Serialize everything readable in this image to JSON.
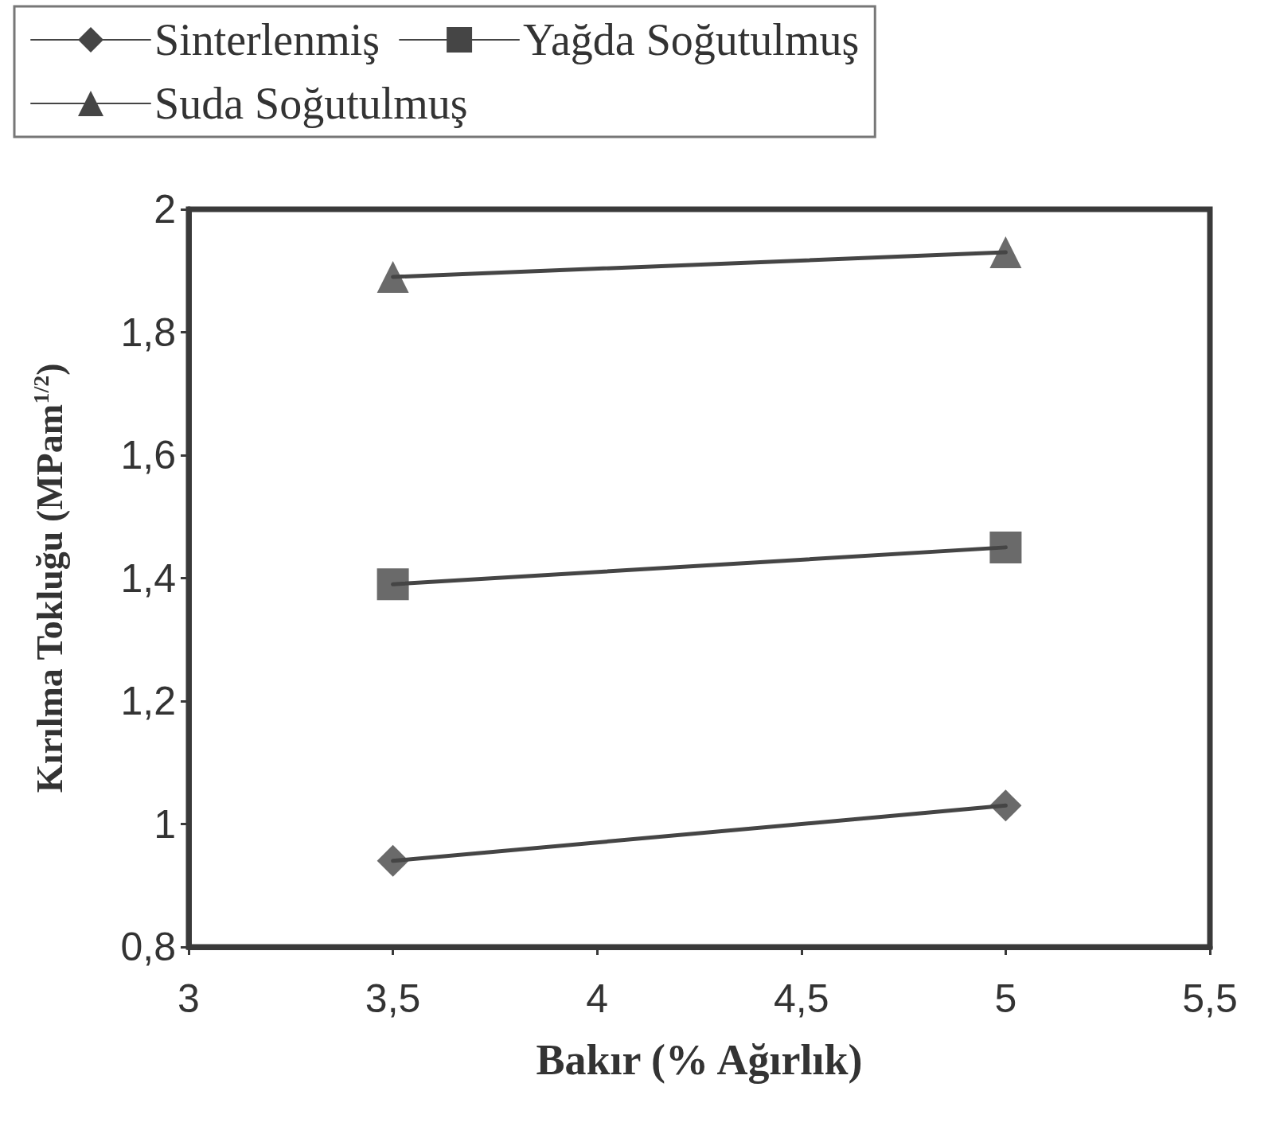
{
  "chart_data": {
    "type": "line",
    "xlabel": "Bakır (% Ağırlık)",
    "ylabel": "Kırılma Tokluğu (MPam$^{1/2}$)",
    "x": [
      3.5,
      5
    ],
    "series": [
      {
        "name": "Sinterlenmiş",
        "color": "#454545",
        "marker": "diamond",
        "values": [
          0.94,
          1.03
        ]
      },
      {
        "name": "Yağda Soğutulmuş",
        "color": "#454545",
        "marker": "square",
        "values": [
          1.39,
          1.45
        ]
      },
      {
        "name": "Suda Soğutulmuş",
        "color": "#454545",
        "marker": "triangle",
        "values": [
          1.89,
          1.93
        ]
      }
    ],
    "xlim": [
      3,
      5.5
    ],
    "xticks": [
      3,
      {
        "value": 3.5,
        "label": "3,5"
      },
      4,
      {
        "value": 4.5,
        "label": "4,5"
      },
      5,
      {
        "value": 5.5,
        "label": "5,5"
      }
    ],
    "ylim": [
      0.8,
      2
    ],
    "yticks": [
      {
        "value": 0.8,
        "label": "0,8"
      },
      1,
      {
        "value": 1.2,
        "label": "1,2"
      },
      {
        "value": 1.4,
        "label": "1,4"
      },
      {
        "value": 1.6,
        "label": "1,6"
      },
      {
        "value": 1.8,
        "label": "1,8"
      },
      2
    ],
    "grid": false,
    "legend": "top",
    "line_style": "solid"
  }
}
